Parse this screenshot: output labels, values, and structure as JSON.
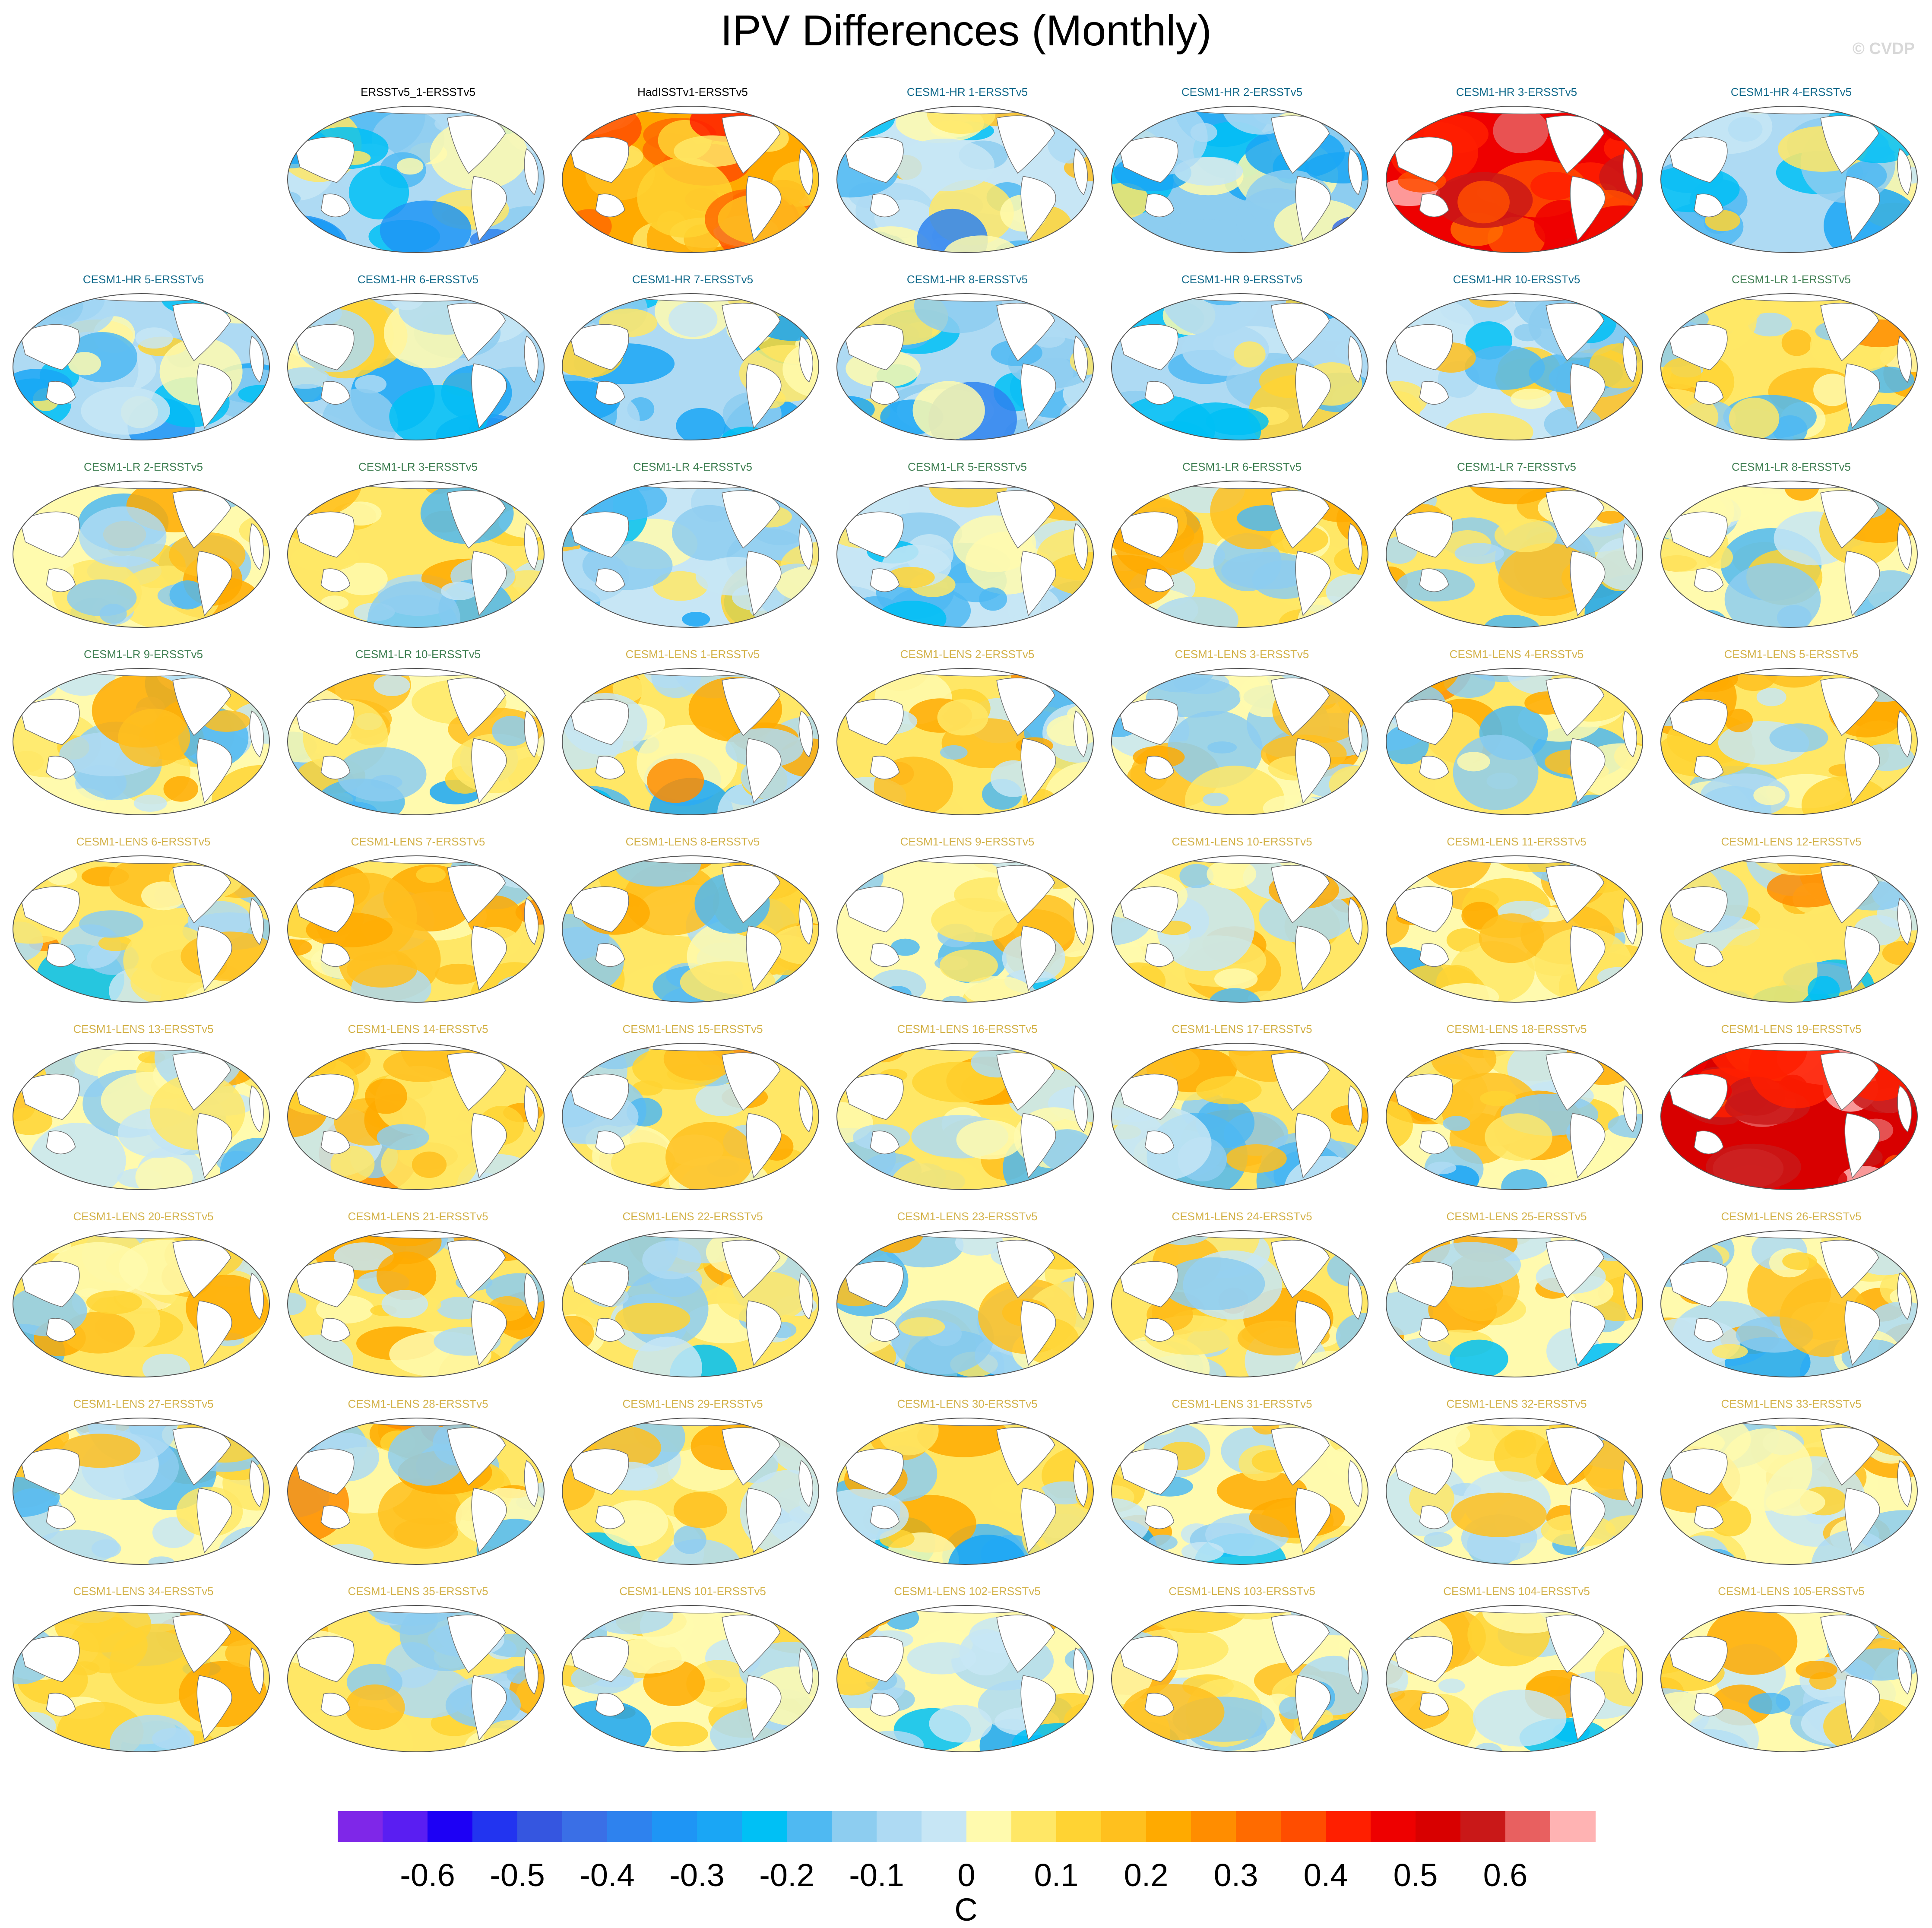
{
  "title": "IPV Differences (Monthly)",
  "copyright": "© CVDP",
  "chart_data": {
    "type": "heatmap",
    "description_field": "map",
    "colorbar": {
      "unit": "C",
      "tick_labels": [
        "-0.6",
        "-0.5",
        "-0.4",
        "-0.3",
        "-0.2",
        "-0.1",
        "0",
        "0.1",
        "0.2",
        "0.3",
        "0.4",
        "0.5",
        "0.6"
      ],
      "colors": [
        "#7f27e8",
        "#5a1ef2",
        "#1d00f5",
        "#2234f0",
        "#3556e0",
        "#3a6fe6",
        "#2e82ee",
        "#1e95f5",
        "#1aa6f5",
        "#00c0f5",
        "#4fb9f2",
        "#8dcdf0",
        "#aedaf3",
        "#c7e6f5",
        "#fffaae",
        "#ffe766",
        "#ffd333",
        "#ffc01e",
        "#ffaa00",
        "#ff8d00",
        "#ff6b00",
        "#ff4d00",
        "#ff1f00",
        "#ee0000",
        "#d80000",
        "#c91818",
        "#e86060",
        "#ffb3b3"
      ]
    },
    "panels": [
      {
        "label": "ERSSTv5_1-ERSSTv5",
        "group": "obs",
        "mean": -0.07
      },
      {
        "label": "HadISSTv1-ERSSTv5",
        "group": "obs",
        "mean": 0.22
      },
      {
        "label": "CESM1-HR 1-ERSSTv5",
        "group": "hr",
        "mean": -0.03
      },
      {
        "label": "CESM1-HR 2-ERSSTv5",
        "group": "hr",
        "mean": -0.12
      },
      {
        "label": "CESM1-HR 3-ERSSTv5",
        "group": "hr",
        "mean": 0.5
      },
      {
        "label": "CESM1-HR 4-ERSSTv5",
        "group": "hr",
        "mean": -0.07
      },
      {
        "label": "CESM1-HR 5-ERSSTv5",
        "group": "hr",
        "mean": -0.07
      },
      {
        "label": "CESM1-HR 6-ERSSTv5",
        "group": "hr",
        "mean": -0.07
      },
      {
        "label": "CESM1-HR 7-ERSSTv5",
        "group": "hr",
        "mean": -0.07
      },
      {
        "label": "CESM1-HR 8-ERSSTv5",
        "group": "hr",
        "mean": -0.07
      },
      {
        "label": "CESM1-HR 9-ERSSTv5",
        "group": "hr",
        "mean": -0.05
      },
      {
        "label": "CESM1-HR 10-ERSSTv5",
        "group": "hr",
        "mean": -0.03
      },
      {
        "label": "CESM1-LR 1-ERSSTv5",
        "group": "lr",
        "mean": 0.05
      },
      {
        "label": "CESM1-LR 2-ERSSTv5",
        "group": "lr",
        "mean": 0.04
      },
      {
        "label": "CESM1-LR 3-ERSSTv5",
        "group": "lr",
        "mean": 0.05
      },
      {
        "label": "CESM1-LR 4-ERSSTv5",
        "group": "lr",
        "mean": -0.02
      },
      {
        "label": "CESM1-LR 5-ERSSTv5",
        "group": "lr",
        "mean": -0.03
      },
      {
        "label": "CESM1-LR 6-ERSSTv5",
        "group": "lr",
        "mean": 0.05
      },
      {
        "label": "CESM1-LR 7-ERSSTv5",
        "group": "lr",
        "mean": 0.05
      },
      {
        "label": "CESM1-LR 8-ERSSTv5",
        "group": "lr",
        "mean": 0.04
      },
      {
        "label": "CESM1-LR 9-ERSSTv5",
        "group": "lr",
        "mean": 0.03
      },
      {
        "label": "CESM1-LR 10-ERSSTv5",
        "group": "lr",
        "mean": 0.02
      },
      {
        "label": "CESM1-LENS 1-ERSSTv5",
        "group": "lens",
        "mean": 0.05
      },
      {
        "label": "CESM1-LENS 2-ERSSTv5",
        "group": "lens",
        "mean": 0.05
      },
      {
        "label": "CESM1-LENS 3-ERSSTv5",
        "group": "lens",
        "mean": 0.04
      },
      {
        "label": "CESM1-LENS 4-ERSSTv5",
        "group": "lens",
        "mean": 0.05
      },
      {
        "label": "CESM1-LENS 5-ERSSTv5",
        "group": "lens",
        "mean": 0.05
      },
      {
        "label": "CESM1-LENS 6-ERSSTv5",
        "group": "lens",
        "mean": 0.05
      },
      {
        "label": "CESM1-LENS 7-ERSSTv5",
        "group": "lens",
        "mean": 0.07
      },
      {
        "label": "CESM1-LENS 8-ERSSTv5",
        "group": "lens",
        "mean": 0.05
      },
      {
        "label": "CESM1-LENS 9-ERSSTv5",
        "group": "lens",
        "mean": 0.04
      },
      {
        "label": "CESM1-LENS 10-ERSSTv5",
        "group": "lens",
        "mean": 0.06
      },
      {
        "label": "CESM1-LENS 11-ERSSTv5",
        "group": "lens",
        "mean": 0.03
      },
      {
        "label": "CESM1-LENS 12-ERSSTv5",
        "group": "lens",
        "mean": 0.06
      },
      {
        "label": "CESM1-LENS 13-ERSSTv5",
        "group": "lens",
        "mean": 0.02
      },
      {
        "label": "CESM1-LENS 14-ERSSTv5",
        "group": "lens",
        "mean": 0.06
      },
      {
        "label": "CESM1-LENS 15-ERSSTv5",
        "group": "lens",
        "mean": 0.05
      },
      {
        "label": "CESM1-LENS 16-ERSSTv5",
        "group": "lens",
        "mean": 0.05
      },
      {
        "label": "CESM1-LENS 17-ERSSTv5",
        "group": "lens",
        "mean": 0.05
      },
      {
        "label": "CESM1-LENS 18-ERSSTv5",
        "group": "lens",
        "mean": 0.04
      },
      {
        "label": "CESM1-LENS 19-ERSSTv5",
        "group": "lens",
        "mean": 0.52
      },
      {
        "label": "CESM1-LENS 20-ERSSTv5",
        "group": "lens",
        "mean": 0.05
      },
      {
        "label": "CESM1-LENS 21-ERSSTv5",
        "group": "lens",
        "mean": 0.06
      },
      {
        "label": "CESM1-LENS 22-ERSSTv5",
        "group": "lens",
        "mean": 0.05
      },
      {
        "label": "CESM1-LENS 23-ERSSTv5",
        "group": "lens",
        "mean": 0.04
      },
      {
        "label": "CESM1-LENS 24-ERSSTv5",
        "group": "lens",
        "mean": 0.05
      },
      {
        "label": "CESM1-LENS 25-ERSSTv5",
        "group": "lens",
        "mean": 0.04
      },
      {
        "label": "CESM1-LENS 26-ERSSTv5",
        "group": "lens",
        "mean": 0.04
      },
      {
        "label": "CESM1-LENS 27-ERSSTv5",
        "group": "lens",
        "mean": 0.04
      },
      {
        "label": "CESM1-LENS 28-ERSSTv5",
        "group": "lens",
        "mean": 0.05
      },
      {
        "label": "CESM1-LENS 29-ERSSTv5",
        "group": "lens",
        "mean": 0.05
      },
      {
        "label": "CESM1-LENS 30-ERSSTv5",
        "group": "lens",
        "mean": 0.05
      },
      {
        "label": "CESM1-LENS 31-ERSSTv5",
        "group": "lens",
        "mean": 0.04
      },
      {
        "label": "CESM1-LENS 32-ERSSTv5",
        "group": "lens",
        "mean": 0.04
      },
      {
        "label": "CESM1-LENS 33-ERSSTv5",
        "group": "lens",
        "mean": 0.04
      },
      {
        "label": "CESM1-LENS 34-ERSSTv5",
        "group": "lens",
        "mean": 0.05
      },
      {
        "label": "CESM1-LENS 35-ERSSTv5",
        "group": "lens",
        "mean": 0.05
      },
      {
        "label": "CESM1-LENS 101-ERSSTv5",
        "group": "lens",
        "mean": 0.04
      },
      {
        "label": "CESM1-LENS 102-ERSSTv5",
        "group": "lens",
        "mean": 0.04
      },
      {
        "label": "CESM1-LENS 103-ERSSTv5",
        "group": "lens",
        "mean": 0.04
      },
      {
        "label": "CESM1-LENS 104-ERSSTv5",
        "group": "lens",
        "mean": 0.03
      },
      {
        "label": "CESM1-LENS 105-ERSSTv5",
        "group": "lens",
        "mean": 0.04
      }
    ],
    "group_title_colors": {
      "obs": "#000000",
      "hr": "#136b8c",
      "lr": "#3f7f52",
      "lens": "#d3b24a"
    }
  }
}
